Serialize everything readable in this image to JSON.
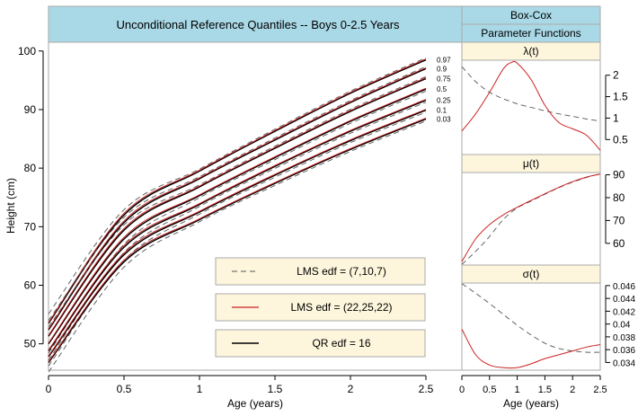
{
  "header": {
    "main_title": "Unconditional Reference Quantiles -- Boys 0-2.5 Years",
    "side_title_1": "Box-Cox",
    "side_title_2": "Parameter Functions"
  },
  "panels": {
    "lambda": "λ(t)",
    "mu": "μ(t)",
    "sigma": "σ(t)"
  },
  "axes": {
    "main_xlabel": "Age (years)",
    "main_ylabel": "Height (cm)",
    "side_xlabel": "Age (years)"
  },
  "legend": [
    {
      "label": "LMS  edf = (7,10,7)",
      "style": "dashed",
      "color": "#555555"
    },
    {
      "label": "LMS  edf = (22,25,22)",
      "style": "solid",
      "color": "#cc2222"
    },
    {
      "label": "QR  edf = 16",
      "style": "solid",
      "color": "#000000"
    }
  ],
  "colors": {
    "header_bg": "#a9d8e6",
    "strip_bg": "#fdf5dc",
    "red": "#cc2222",
    "dashed": "#555555"
  },
  "chart_data": [
    {
      "type": "line",
      "title": "Unconditional Reference Quantiles -- Boys 0-2.5 Years",
      "xlabel": "Age (years)",
      "ylabel": "Height (cm)",
      "xlim": [
        0,
        2.5
      ],
      "ylim": [
        45.5,
        101.5
      ],
      "x_ticks": [
        0,
        0.5,
        1,
        1.5,
        2,
        2.5
      ],
      "y_ticks": [
        50,
        60,
        70,
        80,
        90,
        100
      ],
      "x": [
        0,
        0.5,
        1,
        1.5,
        2,
        2.5
      ],
      "quantiles": [
        {
          "name": "0.97",
          "values": [
            53.5,
            72.0,
            79.5,
            86.3,
            92.8,
            98.5
          ]
        },
        {
          "name": "0.9",
          "values": [
            52.4,
            70.7,
            78.2,
            84.8,
            91.2,
            97.0
          ]
        },
        {
          "name": "0.75",
          "values": [
            51.3,
            69.4,
            76.8,
            83.4,
            89.7,
            95.3
          ]
        },
        {
          "name": "0.5",
          "values": [
            50.0,
            67.9,
            75.3,
            81.8,
            88.0,
            93.5
          ]
        },
        {
          "name": "0.25",
          "values": [
            48.8,
            66.5,
            73.8,
            80.3,
            86.3,
            91.6
          ]
        },
        {
          "name": "0.1",
          "values": [
            47.8,
            65.2,
            72.5,
            78.8,
            84.7,
            89.9
          ]
        },
        {
          "name": "0.03",
          "values": [
            46.8,
            64.0,
            71.2,
            77.4,
            83.2,
            88.4
          ]
        }
      ],
      "legend_position": "bottom-right"
    },
    {
      "type": "line",
      "title": "λ(t)",
      "xlim": [
        0,
        2.5
      ],
      "ylim": [
        0.15,
        2.35
      ],
      "y_ticks": [
        0.5,
        1,
        1.5,
        2
      ],
      "x": [
        0,
        0.25,
        0.5,
        0.75,
        0.9,
        1.0,
        1.25,
        1.5,
        1.75,
        2.0,
        2.25,
        2.5
      ],
      "series": [
        {
          "name": "LMS  edf = (7,10,7)",
          "values": [
            2.2,
            1.85,
            1.6,
            1.45,
            1.38,
            1.33,
            1.25,
            1.17,
            1.1,
            1.04,
            0.98,
            0.93
          ]
        },
        {
          "name": "LMS  edf = (22,25,22)",
          "values": [
            0.7,
            1.1,
            1.6,
            2.15,
            2.3,
            2.28,
            1.9,
            1.3,
            0.9,
            0.75,
            0.6,
            0.25
          ]
        }
      ]
    },
    {
      "type": "line",
      "title": "μ(t)",
      "xlim": [
        0,
        2.5
      ],
      "ylim": [
        50.5,
        91
      ],
      "y_ticks": [
        60,
        70,
        80,
        90
      ],
      "x": [
        0,
        0.25,
        0.5,
        0.75,
        1.0,
        1.25,
        1.5,
        1.75,
        2.0,
        2.25,
        2.5
      ],
      "series": [
        {
          "name": "LMS  edf = (7,10,7)",
          "values": [
            50.8,
            56.5,
            63.0,
            70.5,
            75.5,
            78.5,
            81.5,
            84.3,
            86.8,
            88.8,
            90.5
          ]
        },
        {
          "name": "LMS  edf = (22,25,22)",
          "values": [
            52.0,
            62.0,
            68.2,
            72.5,
            75.8,
            78.8,
            81.7,
            84.5,
            87.0,
            89.0,
            90.3
          ]
        }
      ]
    },
    {
      "type": "line",
      "title": "σ(t)",
      "xlim": [
        0,
        2.5
      ],
      "ylim": [
        0.0328,
        0.0464
      ],
      "y_ticks": [
        0.034,
        0.036,
        0.038,
        0.04,
        0.042,
        0.044,
        0.046
      ],
      "x": [
        0,
        0.25,
        0.5,
        0.75,
        1.0,
        1.25,
        1.5,
        1.75,
        2.0,
        2.25,
        2.5
      ],
      "series": [
        {
          "name": "LMS  edf = (7,10,7)",
          "values": [
            0.0463,
            0.0448,
            0.0432,
            0.0415,
            0.0398,
            0.0383,
            0.037,
            0.0362,
            0.0358,
            0.0356,
            0.0356
          ]
        },
        {
          "name": "LMS  edf = (22,25,22)",
          "values": [
            0.0392,
            0.0352,
            0.0336,
            0.0332,
            0.0332,
            0.0338,
            0.0346,
            0.0352,
            0.0358,
            0.0364,
            0.0368
          ]
        }
      ]
    }
  ]
}
